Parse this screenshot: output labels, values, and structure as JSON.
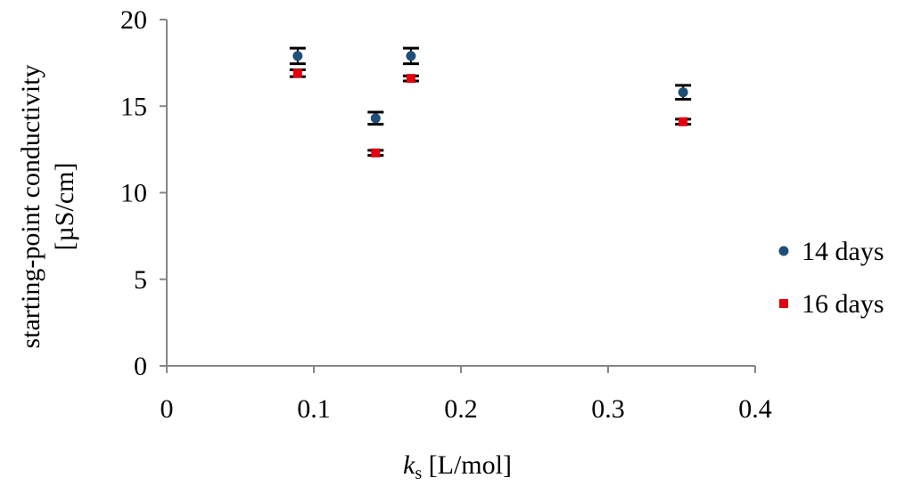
{
  "chart_data": {
    "type": "scatter",
    "title": "",
    "xlabel": {
      "symbol": "k",
      "subscript": "s",
      "unit": " [L/mol]"
    },
    "ylabel_lines": [
      "starting-point conductivity",
      "[µS/cm]"
    ],
    "xlim": [
      0,
      0.4
    ],
    "ylim": [
      0,
      20
    ],
    "xticks": [
      0,
      0.1,
      0.2,
      0.3,
      0.4
    ],
    "xtick_labels": [
      "0",
      "0.1",
      "0.2",
      "0.3",
      "0.4"
    ],
    "yticks": [
      0,
      5,
      10,
      15,
      20
    ],
    "ytick_labels": [
      "0",
      "5",
      "10",
      "15",
      "20"
    ],
    "grid": false,
    "legend": "right",
    "error_bars": true,
    "series": [
      {
        "name": "14 days",
        "color": "#1f4e79",
        "marker": "circle",
        "points": [
          {
            "x": 0.089,
            "y": 17.9,
            "err": 0.45
          },
          {
            "x": 0.142,
            "y": 14.3,
            "err": 0.35
          },
          {
            "x": 0.166,
            "y": 17.9,
            "err": 0.45
          },
          {
            "x": 0.351,
            "y": 15.8,
            "err": 0.4
          }
        ]
      },
      {
        "name": "16 days",
        "color": "#e3000f",
        "marker": "square",
        "points": [
          {
            "x": 0.089,
            "y": 16.9,
            "err": 0.2
          },
          {
            "x": 0.142,
            "y": 12.3,
            "err": 0.15
          },
          {
            "x": 0.166,
            "y": 16.6,
            "err": 0.15
          },
          {
            "x": 0.351,
            "y": 14.1,
            "err": 0.15
          }
        ]
      }
    ]
  }
}
